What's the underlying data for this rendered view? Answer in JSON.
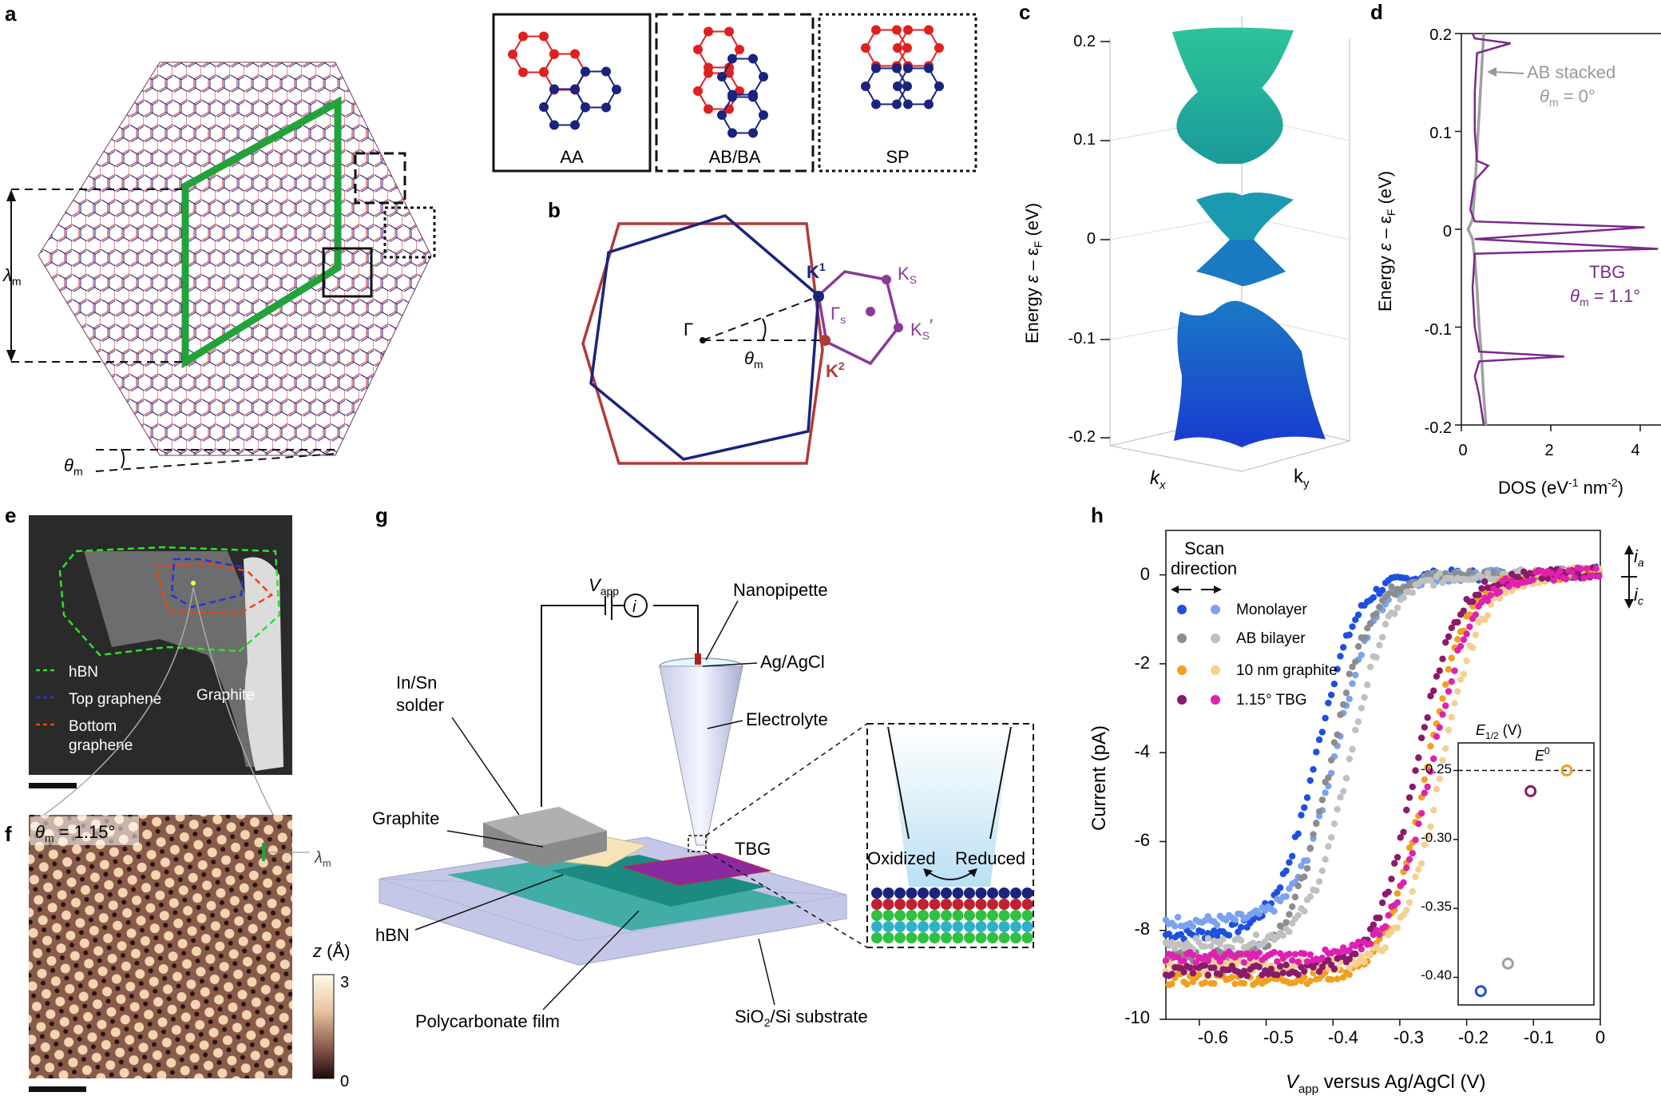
{
  "panel_labels": {
    "a": "a",
    "b": "b",
    "c": "c",
    "d": "d",
    "e": "e",
    "f": "f",
    "g": "g",
    "h": "h"
  },
  "panel_a": {
    "lambda": "λ",
    "lambda_sub": "m",
    "theta": "θ",
    "theta_sub": "m",
    "stacking": [
      "AA",
      "AB/BA",
      "SP"
    ],
    "colors": {
      "red": "#e02020",
      "blue": "#1a237e",
      "green": "#22a33a"
    }
  },
  "panel_b": {
    "gamma": "Γ",
    "gamma_s": "Γ",
    "gamma_s_sub": "s",
    "theta": "θ",
    "theta_sub": "m",
    "K1": "K",
    "K1_sup": "1",
    "K2": "K",
    "K2_sup": "2",
    "Ks": "K",
    "Ks_sub": "S",
    "Ks_prime_sub": "S",
    "prime": "′",
    "colors": {
      "blue": "#1a237e",
      "red": "#b03a3a",
      "purple": "#8a3a9a"
    }
  },
  "panel_c": {
    "ylabel_energy": "Energy",
    "ylabel_eps": "ε",
    "ylabel_minus": " – ε",
    "ylabel_f": "F",
    "ylabel_unit": " (eV)",
    "yticks": [
      "0.2",
      "0.1",
      "0",
      "-0.1",
      "-0.2"
    ],
    "kx": "k",
    "kx_sub": "x",
    "ky": "k",
    "ky_sub": "y"
  },
  "chart_data": [
    {
      "type": "line",
      "title": "",
      "xlabel": "DOS (eV⁻¹ nm⁻²)",
      "ylabel": "Energy ε – εF (eV)",
      "xlim": [
        0,
        4.5
      ],
      "ylim": [
        -0.2,
        0.2
      ],
      "xticks": [
        0,
        2,
        4
      ],
      "yticks": [
        -0.2,
        -0.1,
        0,
        0.1,
        0.2
      ],
      "series": [
        {
          "name": "AB stacked θm = 0°",
          "color": "#a0a0a0",
          "x": [
            0.55,
            0.5,
            0.45,
            0.4,
            0.35,
            0.3,
            0.25,
            0.15,
            0.25,
            0.3,
            0.35,
            0.4,
            0.45,
            0.5
          ],
          "y": [
            -0.2,
            -0.17,
            -0.13,
            -0.1,
            -0.06,
            -0.03,
            -0.01,
            0.0,
            0.01,
            0.04,
            0.08,
            0.12,
            0.16,
            0.2
          ]
        },
        {
          "name": "TBG θm = 1.1°",
          "color": "#7a2a8a",
          "x": [
            0.5,
            0.4,
            0.3,
            0.4,
            2.3,
            0.4,
            0.3,
            0.25,
            0.3,
            4.4,
            0.3,
            4.1,
            0.3,
            0.2,
            0.3,
            0.6,
            0.35,
            0.3,
            0.3,
            0.35,
            1.1,
            0.3,
            0.25
          ],
          "y": [
            -0.2,
            -0.17,
            -0.15,
            -0.135,
            -0.13,
            -0.125,
            -0.1,
            -0.06,
            -0.025,
            -0.02,
            -0.01,
            0.002,
            0.008,
            0.02,
            0.05,
            0.065,
            0.07,
            0.1,
            0.14,
            0.18,
            0.19,
            0.195,
            0.2
          ]
        }
      ]
    },
    {
      "type": "scatter",
      "title": "",
      "xlabel": "Vapp versus Ag/AgCl (V)",
      "ylabel": "Current (pA)",
      "xlim": [
        -0.65,
        0.0
      ],
      "ylim": [
        -10,
        1
      ],
      "xticks": [
        -0.6,
        -0.5,
        -0.4,
        -0.3,
        -0.2,
        -0.1,
        0
      ],
      "yticks": [
        0,
        -2,
        -4,
        -6,
        -8,
        -10
      ],
      "series": [
        {
          "name": "Monolayer (forward)",
          "color": "#1e50e0",
          "e_half": -0.41,
          "shift": -0.015,
          "limit": -8.1
        },
        {
          "name": "Monolayer (reverse)",
          "color": "#7aa2ee",
          "e_half": -0.41,
          "shift": 0.015,
          "limit": -7.8
        },
        {
          "name": "AB bilayer (forward)",
          "color": "#8c8c8c",
          "e_half": -0.39,
          "shift": -0.015,
          "limit": -8.6
        },
        {
          "name": "AB bilayer (reverse)",
          "color": "#c0c0c0",
          "e_half": -0.39,
          "shift": 0.015,
          "limit": -8.3
        },
        {
          "name": "10 nm graphite (forward)",
          "color": "#f0a020",
          "e_half": -0.25,
          "shift": -0.012,
          "limit": -9.1
        },
        {
          "name": "10 nm graphite (reverse)",
          "color": "#f5d090",
          "e_half": -0.25,
          "shift": 0.012,
          "limit": -8.8
        },
        {
          "name": "1.15° TBG (forward)",
          "color": "#8a1a6a",
          "e_half": -0.265,
          "shift": -0.012,
          "limit": -8.9
        },
        {
          "name": "1.15° TBG (reverse)",
          "color": "#e020b0",
          "e_half": -0.265,
          "shift": 0.012,
          "limit": -8.6
        }
      ],
      "inset": {
        "title": "E1/2 (V)",
        "ylim": [
          -0.42,
          -0.23
        ],
        "yticks": [
          -0.25,
          -0.3,
          -0.35,
          -0.4
        ],
        "e0": -0.25,
        "points": [
          {
            "x": -0.125,
            "y": -0.41,
            "color": "#1e50e0"
          },
          {
            "x": -0.095,
            "y": -0.39,
            "color": "#a0a0a0"
          },
          {
            "x": -0.07,
            "y": -0.265,
            "color": "#8a1a6a"
          },
          {
            "x": -0.03,
            "y": -0.25,
            "color": "#f0a020"
          }
        ]
      }
    }
  ],
  "panel_d": {
    "ab_label": "AB stacked",
    "ab_theta": "θ",
    "ab_theta_sub": "m",
    "ab_theta_val": " = 0°",
    "tbg_label": "TBG",
    "tbg_theta": "θ",
    "tbg_theta_sub": "m",
    "tbg_theta_val": " = 1.1°",
    "yticks": [
      "0.2",
      "0.1",
      "0",
      "-0.1",
      "-0.2"
    ],
    "xticks": [
      "0",
      "2",
      "4"
    ],
    "xlabel": "DOS (eV",
    "xlabel_sup1": "-1",
    "xlabel_mid": " nm",
    "xlabel_sup2": "-2",
    "xlabel_end": ")",
    "ylabel_energy": "Energy",
    "ylabel_eps": "ε",
    "ylabel_minus": " – ε",
    "ylabel_f": "F",
    "ylabel_unit": " (eV)"
  },
  "panel_e": {
    "legend": [
      "hBN",
      "Top graphene",
      "Bottom graphene"
    ],
    "legend_bottom_line2": "graphene",
    "legend_bottom_line1": "Bottom",
    "graphite": "Graphite",
    "colors": {
      "hbn": "#2ee02e",
      "top": "#2233dd",
      "bottom": "#ee4411"
    }
  },
  "panel_f": {
    "theta": "θ",
    "theta_sub": "m",
    "theta_val": " = 1.15°",
    "lambda": "λ",
    "lambda_sub": "m",
    "z_label": "z",
    "z_unit": " (Å)",
    "z_max": "3",
    "z_min": "0"
  },
  "panel_g": {
    "vapp": "V",
    "vapp_sub": "app",
    "i": "i",
    "nanopipette": "Nanopipette",
    "agcl": "Ag/AgCl",
    "electrolyte": "Electrolyte",
    "insn1": "In/Sn",
    "insn2": "solder",
    "graphite": "Graphite",
    "tbg": "TBG",
    "hbn": "hBN",
    "polycarbonate": "Polycarbonate film",
    "sio2": "SiO",
    "sio2_sub": "2",
    "sio2_rest": "/Si substrate",
    "oxidized": "Oxidized",
    "reduced": "Reduced"
  },
  "panel_h": {
    "scan": "Scan",
    "direction": "direction",
    "legend": [
      "Monolayer",
      "AB bilayer",
      "10 nm graphite",
      "1.15° TBG"
    ],
    "ia": "i",
    "ia_sub": "a",
    "ic": "i",
    "ic_sub": "c",
    "xlabel_v": "V",
    "xlabel_sub": "app",
    "xlabel_rest": " versus Ag/AgCl (V)",
    "ylabel": "Current (pA)",
    "xticks": [
      "-0.6",
      "-0.5",
      "-0.4",
      "-0.3",
      "-0.2",
      "-0.1",
      "0"
    ],
    "yticks": [
      "0",
      "-2",
      "-4",
      "-6",
      "-8",
      "-10"
    ],
    "inset_title": "E",
    "inset_title_sub": "1/2",
    "inset_title_unit": " (V)",
    "inset_e0": "E",
    "inset_e0_sup": "0",
    "inset_yticks": [
      "-0.25",
      "-0.30",
      "-0.35",
      "-0.40"
    ]
  }
}
